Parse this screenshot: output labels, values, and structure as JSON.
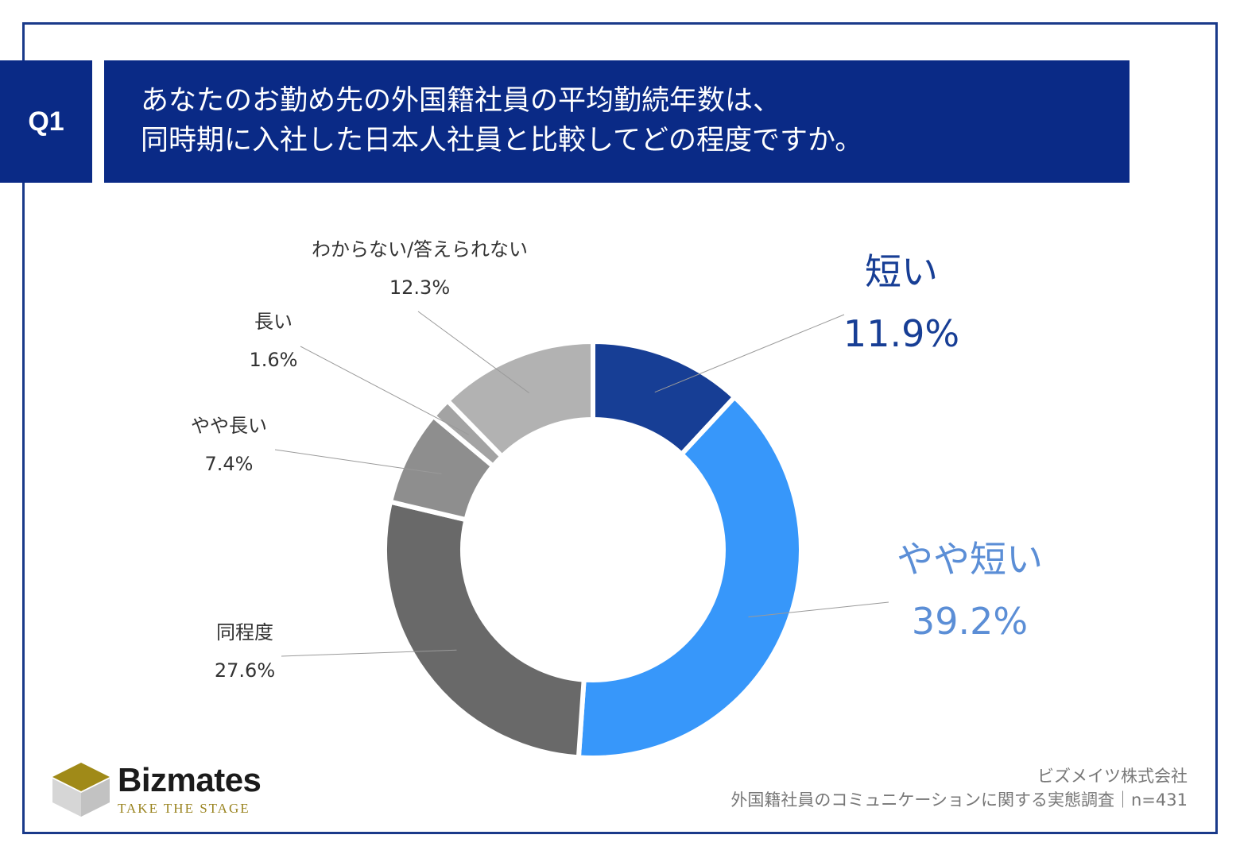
{
  "header": {
    "badge": "Q1",
    "title_line1": "あなたのお勤め先の外国籍社員の平均勤続年数は、",
    "title_line2": "同時期に入社した日本人社員と比較してどの程度ですか。"
  },
  "chart_data": {
    "type": "pie",
    "donut": true,
    "title": "",
    "slices": [
      {
        "label": "短い",
        "value": 11.9,
        "value_label": "11.9%",
        "color": "#173e95",
        "label_color": "#173e95"
      },
      {
        "label": "やや短い",
        "value": 39.2,
        "value_label": "39.2%",
        "color": "#3797fa",
        "label_color": "#5b8ed6"
      },
      {
        "label": "同程度",
        "value": 27.6,
        "value_label": "27.6%",
        "color": "#696969",
        "label_color": "#333333"
      },
      {
        "label": "やや長い",
        "value": 7.4,
        "value_label": "7.4%",
        "color": "#8e8e8e",
        "label_color": "#333333"
      },
      {
        "label": "長い",
        "value": 1.6,
        "value_label": "1.6%",
        "color": "#a3a3a3",
        "label_color": "#333333"
      },
      {
        "label": "わからない/答えられない",
        "value": 12.3,
        "value_label": "12.3%",
        "color": "#b2b2b2",
        "label_color": "#333333"
      }
    ]
  },
  "logo": {
    "name": "Bizmates",
    "tagline": "TAKE THE STAGE"
  },
  "source": {
    "company": "ビズメイツ株式会社",
    "survey": "外国籍社員のコミュニケーションに関する実態調査｜n=431"
  }
}
